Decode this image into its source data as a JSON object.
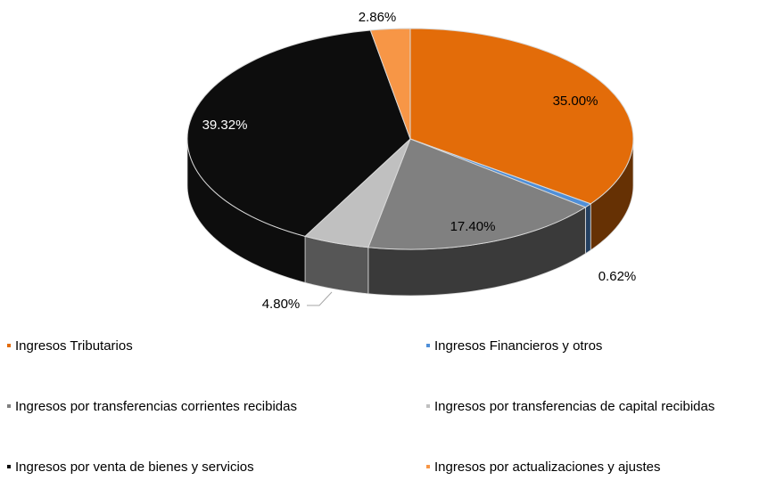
{
  "chart_data": {
    "type": "pie",
    "categories": [
      "Ingresos Tributarios",
      "Ingresos Financieros y otros",
      "Ingresos por transferencias corrientes recibidas",
      "Ingresos por transferencias de capital recibidas",
      "Ingresos por venta de bienes y servicios",
      "Ingresos por actualizaciones y ajustes"
    ],
    "values": [
      35.0,
      0.62,
      17.4,
      4.8,
      39.32,
      2.86
    ],
    "value_labels": [
      "35.00%",
      "0.62%",
      "17.40%",
      "4.80%",
      "39.32%",
      "2.86%"
    ],
    "colors": [
      "#e36c09",
      "#4f8fd8",
      "#808080",
      "#c0c0c0",
      "#0d0d0d",
      "#f79646"
    ]
  }
}
